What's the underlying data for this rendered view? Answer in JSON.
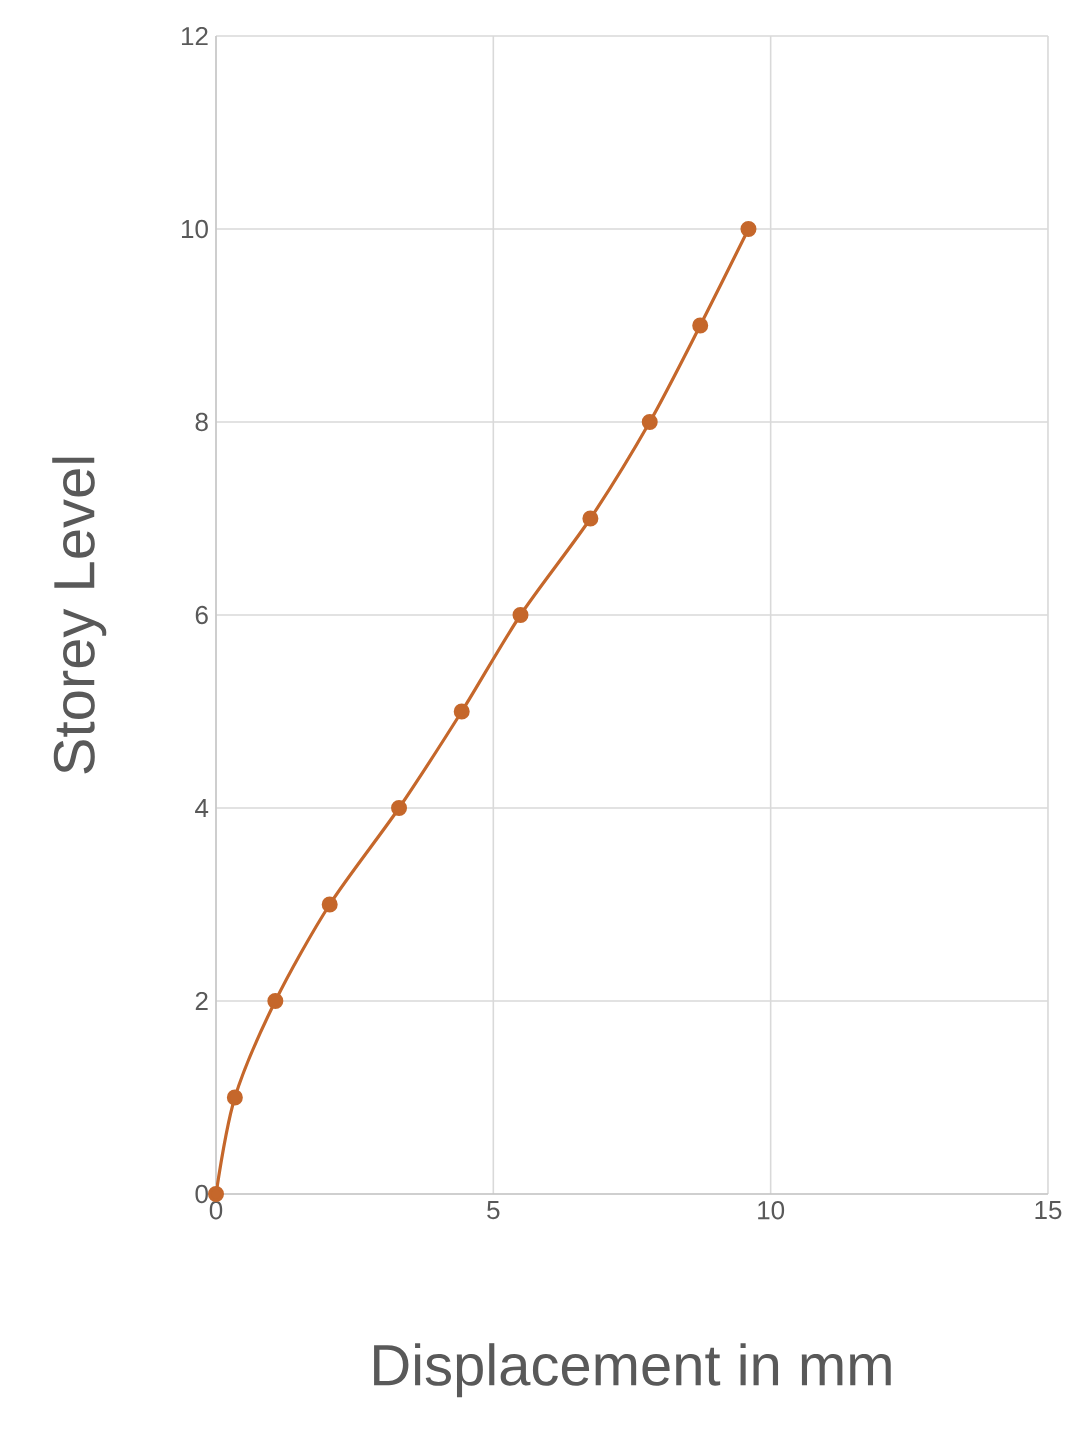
{
  "chart_data": {
    "type": "line",
    "xlabel": "Displacement in mm",
    "ylabel": "Storey Level",
    "x": [
      0,
      0.34,
      1.07,
      2.05,
      3.3,
      4.43,
      5.49,
      6.75,
      7.82,
      8.73,
      9.6
    ],
    "series": [
      {
        "color": "#c5672b",
        "values": [
          0,
          1,
          2,
          3,
          4,
          5,
          6,
          7,
          8,
          9,
          10
        ]
      }
    ],
    "xlim": [
      0,
      15
    ],
    "xticks": [
      0,
      5,
      10,
      15
    ],
    "ylim": [
      0,
      12
    ],
    "yticks": [
      0,
      2,
      4,
      6,
      8,
      10,
      12
    ],
    "grid": true,
    "marker": "circle",
    "line_style": "solid"
  }
}
